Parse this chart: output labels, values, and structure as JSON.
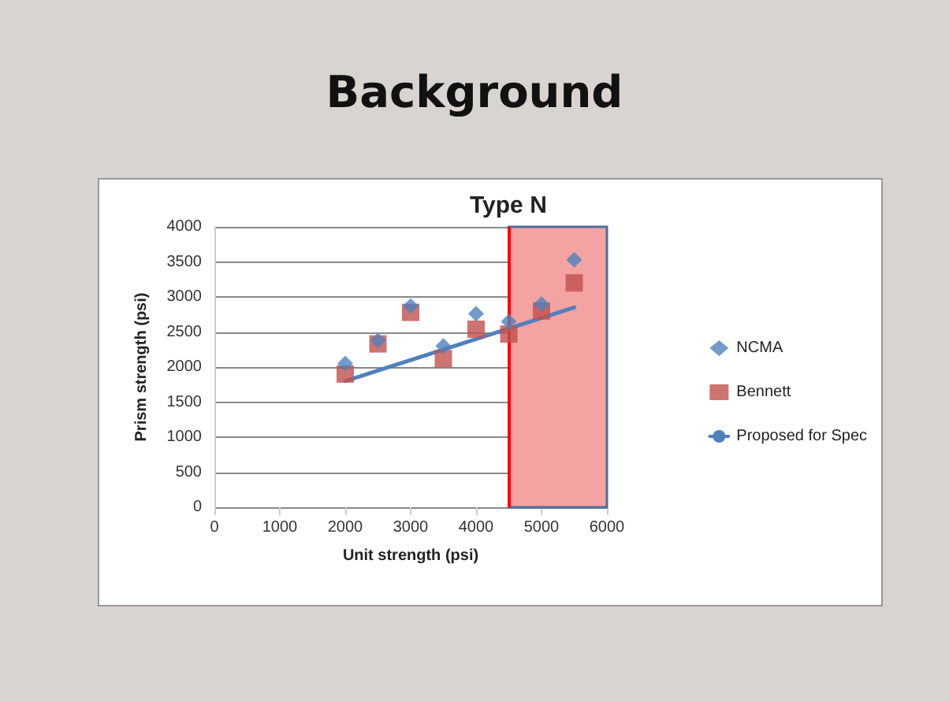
{
  "chart_data": {
    "type": "scatter",
    "title": "Background",
    "subtitle": "Type N",
    "xlabel": "Unit strength (psi)",
    "ylabel": "Prism strength (psi)",
    "x": [
      2000,
      2500,
      3000,
      3500,
      4000,
      4500,
      5000,
      5500
    ],
    "series": [
      {
        "name": "NCMA",
        "color": "#4f81bd",
        "marker": "diamond",
        "values": [
          2050,
          2380,
          2870,
          2300,
          2760,
          2650,
          2900,
          3530
        ]
      },
      {
        "name": "Bennett",
        "color": "#c0504d",
        "marker": "square",
        "values": [
          1900,
          2330,
          2780,
          2120,
          2540,
          2470,
          2800,
          3200
        ]
      },
      {
        "name": "Proposed for Spec",
        "type": "line",
        "color": "#4f81bd",
        "marker": "none",
        "x": [
          2000,
          5500
        ],
        "values": [
          1800,
          2850
        ]
      }
    ],
    "xlim": [
      0,
      6000
    ],
    "xticks": [
      0,
      1000,
      2000,
      3000,
      4000,
      5000,
      6000
    ],
    "ylim": [
      0,
      4000
    ],
    "yticks": [
      0,
      500,
      1000,
      1500,
      2000,
      2500,
      3000,
      3500,
      4000
    ],
    "bands": [
      {
        "axis": "x",
        "from": 4500,
        "to": 6000,
        "color": "#f4a3a3"
      }
    ],
    "ref_lines": [
      {
        "axis": "x",
        "value": 4500,
        "color": "#ff0000"
      }
    ],
    "grid": "y",
    "legend": "right"
  }
}
